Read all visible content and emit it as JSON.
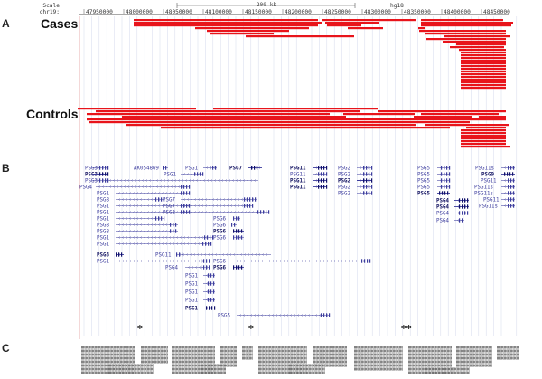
{
  "sections": {
    "a": "A",
    "b": "B",
    "c": "C"
  },
  "groups": {
    "cases": "Cases",
    "controls": "Controls"
  },
  "header": {
    "scale_label": "Scale",
    "chrom_label": "chr19:",
    "scale_value": "200 kb",
    "assembly": "hg18",
    "coords": [
      "47950000",
      "48000000",
      "48050000",
      "48100000",
      "48150000",
      "48200000",
      "48250000",
      "48300000",
      "48350000",
      "48400000",
      "48450000"
    ]
  },
  "track_color": "#e8141b",
  "gene_color": "#3d3d9e",
  "genes": [
    {
      "label": "PSG3",
      "bold": false
    },
    {
      "label": "PSG3",
      "bold": true
    },
    {
      "label": "PSG3",
      "bold": false
    },
    {
      "label": "PSG4",
      "bold": false
    },
    {
      "label": "PSG1",
      "bold": false
    },
    {
      "label": "PSG8",
      "bold": false
    },
    {
      "label": "PSG1",
      "bold": false
    },
    {
      "label": "PSG1",
      "bold": false
    },
    {
      "label": "PSG1",
      "bold": false
    },
    {
      "label": "PSG8",
      "bold": false
    },
    {
      "label": "PSG8",
      "bold": false
    },
    {
      "label": "PSG1",
      "bold": false
    },
    {
      "label": "PSG1",
      "bold": false
    },
    {
      "label": "PSG8",
      "bold": true
    },
    {
      "label": "PSG1",
      "bold": false
    },
    {
      "label": "AK054869",
      "bold": false
    },
    {
      "label": "PSG1",
      "bold": false
    },
    {
      "label": "PSG1",
      "bold": false
    },
    {
      "label": "PSG7",
      "bold": false
    },
    {
      "label": "PSG7",
      "bold": false
    },
    {
      "label": "PSG2",
      "bold": false
    },
    {
      "label": "PSG7",
      "bold": true
    },
    {
      "label": "PSG6",
      "bold": false
    },
    {
      "label": "PSG6",
      "bold": false
    },
    {
      "label": "PSG6",
      "bold": true
    },
    {
      "label": "PSG6",
      "bold": false
    },
    {
      "label": "PSG11",
      "bold": false
    },
    {
      "label": "PSG6",
      "bold": false
    },
    {
      "label": "PSG4",
      "bold": false
    },
    {
      "label": "PSG6",
      "bold": true
    },
    {
      "label": "PSG1",
      "bold": false
    },
    {
      "label": "PSG1",
      "bold": false
    },
    {
      "label": "PSG1",
      "bold": false
    },
    {
      "label": "PSG1",
      "bold": false
    },
    {
      "label": "PSG1",
      "bold": true
    },
    {
      "label": "PSG5",
      "bold": false
    },
    {
      "label": "PSG11",
      "bold": true
    },
    {
      "label": "PSG11",
      "bold": false
    },
    {
      "label": "PSG11",
      "bold": true
    },
    {
      "label": "PSG11",
      "bold": true
    },
    {
      "label": "PSG2",
      "bold": false
    },
    {
      "label": "PSG2",
      "bold": false
    },
    {
      "label": "PSG2",
      "bold": true
    },
    {
      "label": "PSG2",
      "bold": false
    },
    {
      "label": "PSG2",
      "bold": false
    },
    {
      "label": "PSG5",
      "bold": false
    },
    {
      "label": "PSG5",
      "bold": false
    },
    {
      "label": "PSG5",
      "bold": false
    },
    {
      "label": "PSG5",
      "bold": false
    },
    {
      "label": "PSG5",
      "bold": true
    },
    {
      "label": "PSG4",
      "bold": true
    },
    {
      "label": "PSG4",
      "bold": true
    },
    {
      "label": "PSG4",
      "bold": false
    },
    {
      "label": "PSG4",
      "bold": false
    },
    {
      "label": "PSG11s",
      "bold": false
    },
    {
      "label": "PSG9",
      "bold": true
    },
    {
      "label": "PSG11",
      "bold": false
    },
    {
      "label": "PSG11s",
      "bold": false
    },
    {
      "label": "PSG11s",
      "bold": false
    },
    {
      "label": "PSG11",
      "bold": false
    },
    {
      "label": "PSG11s",
      "bold": false
    }
  ],
  "stars": [
    "*",
    "*",
    "**"
  ],
  "conservation_color": "#6f6f6f"
}
